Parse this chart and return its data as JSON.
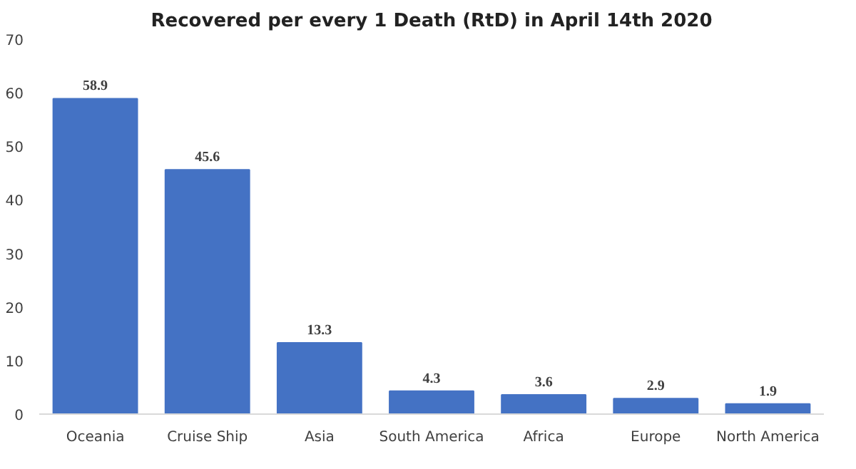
{
  "chart_data": {
    "type": "bar",
    "title": "Recovered per every 1 Death (RtD) in April 14th 2020",
    "categories": [
      "Oceania",
      "Cruise Ship",
      "Asia",
      "South America",
      "Africa",
      "Europe",
      "North America"
    ],
    "values": [
      58.9,
      45.6,
      13.3,
      4.3,
      3.6,
      2.9,
      1.9
    ],
    "color": "#4472c4",
    "ylim": [
      0,
      70
    ],
    "yticks": [
      0,
      10,
      20,
      30,
      40,
      50,
      60,
      70
    ],
    "grid": false,
    "data_labels": true
  }
}
